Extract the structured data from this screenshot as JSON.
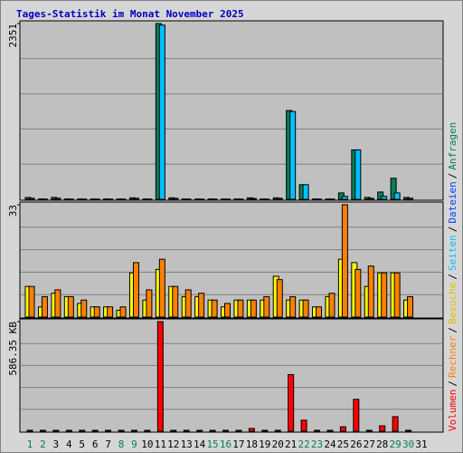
{
  "chart_data": [
    {
      "type": "bar",
      "title": "Tages-Statistik im Monat November 2025",
      "ylim": [
        0,
        2351
      ],
      "yticks": [
        2351
      ],
      "series": [
        {
          "name": "Anfragen",
          "color": "#00805c",
          "values": [
            25,
            5,
            25,
            5,
            5,
            5,
            5,
            5,
            20,
            5,
            2351,
            20,
            5,
            5,
            5,
            5,
            5,
            20,
            5,
            20,
            1188,
            196,
            5,
            5,
            86,
            661,
            25,
            98,
            282,
            25,
            0
          ]
        },
        {
          "name": "Seiten",
          "color": "#00c0ff",
          "values": [
            15,
            3,
            15,
            3,
            3,
            3,
            3,
            3,
            15,
            3,
            2330,
            15,
            3,
            3,
            3,
            3,
            3,
            12,
            3,
            15,
            1175,
            196,
            3,
            3,
            40,
            661,
            15,
            40,
            86,
            15,
            0
          ]
        }
      ]
    },
    {
      "type": "bar",
      "ylim": [
        0,
        33
      ],
      "yticks": [
        33
      ],
      "series": [
        {
          "name": "Besuche",
          "color": "#ffff00",
          "values": [
            9,
            3,
            7,
            6,
            4,
            3,
            3,
            2,
            13,
            5,
            14,
            9,
            6,
            6,
            5,
            3,
            5,
            5,
            5,
            12,
            5,
            5,
            3,
            6,
            17,
            16,
            9,
            13,
            13,
            5,
            0
          ]
        },
        {
          "name": "Rechner",
          "color": "#ff8000",
          "values": [
            9,
            6,
            8,
            6,
            5,
            3,
            3,
            3,
            16,
            8,
            17,
            9,
            8,
            7,
            5,
            4,
            5,
            5,
            6,
            11,
            6,
            5,
            3,
            7,
            33,
            14,
            15,
            13,
            13,
            6,
            0
          ]
        }
      ]
    },
    {
      "type": "bar",
      "ylim": [
        0,
        586.35
      ],
      "yticks": [
        {
          "value": 586.35,
          "label": "586.35 KB"
        }
      ],
      "categories": [
        "1",
        "2",
        "3",
        "4",
        "5",
        "6",
        "7",
        "8",
        "9",
        "10",
        "11",
        "12",
        "13",
        "14",
        "15",
        "16",
        "17",
        "18",
        "19",
        "20",
        "21",
        "22",
        "23",
        "24",
        "25",
        "26",
        "27",
        "28",
        "29",
        "30",
        "31"
      ],
      "category_colors": [
        "#00805c",
        "#00805c",
        "#000000",
        "#000000",
        "#000000",
        "#000000",
        "#000000",
        "#00805c",
        "#00805c",
        "#000000",
        "#000000",
        "#000000",
        "#000000",
        "#000000",
        "#00805c",
        "#00805c",
        "#000000",
        "#000000",
        "#000000",
        "#000000",
        "#000000",
        "#00805c",
        "#00805c",
        "#000000",
        "#000000",
        "#000000",
        "#000000",
        "#000000",
        "#00805c",
        "#00805c",
        "#000000"
      ],
      "series": [
        {
          "name": "Volumen",
          "color": "#ff0000",
          "values": [
            5,
            5,
            5,
            5,
            5,
            5,
            5,
            5,
            5,
            5,
            586.35,
            5,
            5,
            5,
            5,
            5,
            5,
            15,
            5,
            5,
            303,
            59,
            5,
            5,
            24,
            171,
            5,
            29,
            78,
            5,
            0
          ]
        }
      ],
      "legend": [
        {
          "name": "Volumen",
          "color": "#ff0000"
        },
        {
          "name": "Rechner",
          "color": "#ff8000"
        },
        {
          "name": "Besuche",
          "color": "#e0c000"
        },
        {
          "name": "Seiten",
          "color": "#00c0ff"
        },
        {
          "name": "Dateien",
          "color": "#0040ff"
        },
        {
          "name": "Anfragen",
          "color": "#00805c"
        }
      ],
      "legend_separator": "/"
    }
  ]
}
